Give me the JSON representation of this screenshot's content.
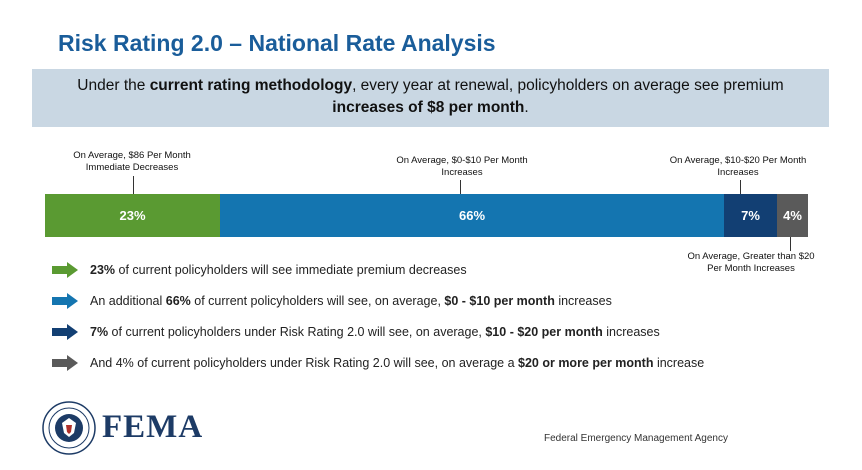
{
  "title": "Risk Rating 2.0 – National Rate Analysis",
  "banner": {
    "p1": "Under the ",
    "b1": "current rating methodology",
    "p2": ", every year at renewal, policyholders on average see premium",
    "b2": "increases of $8 per month",
    "p3": "."
  },
  "bar_segments": [
    {
      "label": "23%",
      "percent": 23,
      "color": "#5a9a32"
    },
    {
      "label": "66%",
      "percent": 66,
      "color": "#1475b0"
    },
    {
      "label": "7%",
      "percent": 7,
      "color": "#123f73"
    },
    {
      "label": "4%",
      "percent": 4,
      "color": "#5a5a5a"
    }
  ],
  "callouts": {
    "c1": [
      "On Average, $86 Per Month",
      "Immediate Decreases"
    ],
    "c2": [
      "On Average, $0-$10 Per Month",
      "Increases"
    ],
    "c3": [
      "On Average, $10-$20 Per Month",
      "Increases"
    ],
    "c4": [
      "On Average, Greater than $20",
      "Per Month Increases"
    ]
  },
  "bullets": [
    {
      "color": "#5a9a32",
      "parts": [
        {
          "b": "23%"
        },
        {
          "t": " of current policyholders will see immediate premium decreases"
        }
      ]
    },
    {
      "color": "#1475b0",
      "parts": [
        {
          "t": "An additional "
        },
        {
          "b": "66%"
        },
        {
          "t": " of current policyholders will see, on average, "
        },
        {
          "b": "$0 - $10 per month"
        },
        {
          "t": " increases"
        }
      ]
    },
    {
      "color": "#123f73",
      "parts": [
        {
          "b": "7%"
        },
        {
          "t": " of current policyholders under Risk Rating 2.0 will see, on average, "
        },
        {
          "b": "$10 - $20 per month"
        },
        {
          "t": " increases"
        }
      ]
    },
    {
      "color": "#5a5a5a",
      "parts": [
        {
          "t": "And 4% of current policyholders under Risk Rating 2.0 will see, on average a "
        },
        {
          "b": "$20 or more per month"
        },
        {
          "t": " increase"
        }
      ]
    }
  ],
  "footer": {
    "logo_text": "FEMA",
    "agency": "Federal Emergency Management Agency",
    "seal_icon": "dhs-seal-icon"
  }
}
